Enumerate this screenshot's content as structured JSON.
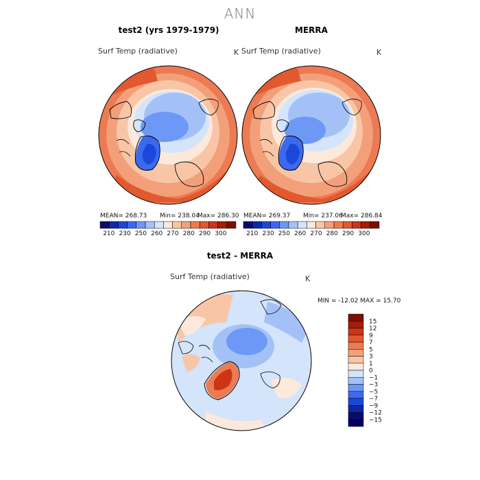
{
  "page": {
    "title": "ANN"
  },
  "panels": [
    {
      "id": "test2",
      "title": "test2 (yrs 1979-1979)",
      "variable": "Surf Temp (radiative)",
      "unit": "K",
      "mean_text": "MEAN= 268.73",
      "min_text": "Min= 238.04",
      "max_text": "Max= 286.30"
    },
    {
      "id": "merra",
      "title": "MERRA",
      "variable": "Surf Temp (radiative)",
      "unit": "K",
      "mean_text": "MEAN= 269.37",
      "min_text": "Min= 237.06",
      "max_text": "Max= 286.84"
    }
  ],
  "diff_panel": {
    "title": "test2 - MERRA",
    "variable": "Surf Temp (radiative)",
    "unit": "K",
    "minmax_text": "MIN = -12.02 MAX =  15.70"
  },
  "chart_data": [
    {
      "type": "heatmap",
      "title": "test2 (yrs 1979-1979)",
      "subtitle": "Surf Temp (radiative)",
      "units": "K",
      "projection": "north polar stereographic",
      "stats": {
        "mean": 268.73,
        "min": 238.04,
        "max": 286.3
      },
      "colorbar": {
        "ticks": [
          "210",
          "230",
          "250",
          "260",
          "270",
          "280",
          "290",
          "300"
        ],
        "colors": [
          "#0b0b6e",
          "#1028a8",
          "#1c48d8",
          "#3b6af0",
          "#6e98f5",
          "#a4c1f7",
          "#d4e4fa",
          "#fde9db",
          "#f8c6a6",
          "#f3a07a",
          "#ec7a52",
          "#e2582f",
          "#cc3414",
          "#a21e08",
          "#7a0e02"
        ]
      }
    },
    {
      "type": "heatmap",
      "title": "MERRA",
      "subtitle": "Surf Temp (radiative)",
      "units": "K",
      "projection": "north polar stereographic",
      "stats": {
        "mean": 269.37,
        "min": 237.06,
        "max": 286.84
      },
      "colorbar": {
        "ticks": [
          "210",
          "230",
          "250",
          "260",
          "270",
          "280",
          "290",
          "300"
        ],
        "colors": [
          "#0b0b6e",
          "#1028a8",
          "#1c48d8",
          "#3b6af0",
          "#6e98f5",
          "#a4c1f7",
          "#d4e4fa",
          "#fde9db",
          "#f8c6a6",
          "#f3a07a",
          "#ec7a52",
          "#e2582f",
          "#cc3414",
          "#a21e08",
          "#7a0e02"
        ]
      }
    },
    {
      "type": "heatmap",
      "title": "test2 - MERRA",
      "subtitle": "Surf Temp (radiative)",
      "units": "K",
      "projection": "north polar stereographic",
      "stats": {
        "min": -12.02,
        "max": 15.7
      },
      "colorbar": {
        "ticks": [
          "15",
          "12",
          "9",
          "7",
          "5",
          "3",
          "1",
          "0",
          "−1",
          "−3",
          "−5",
          "−7",
          "−9",
          "−12",
          "−15"
        ],
        "colors": [
          "#7a0e02",
          "#a21e08",
          "#cc3414",
          "#e2582f",
          "#ec7a52",
          "#f3a07a",
          "#f8c6a6",
          "#fde9db",
          "#d4e4fa",
          "#a4c1f7",
          "#6e98f5",
          "#3b6af0",
          "#1c48d8",
          "#1028a8",
          "#0b0b6e",
          "#000060"
        ]
      }
    }
  ]
}
